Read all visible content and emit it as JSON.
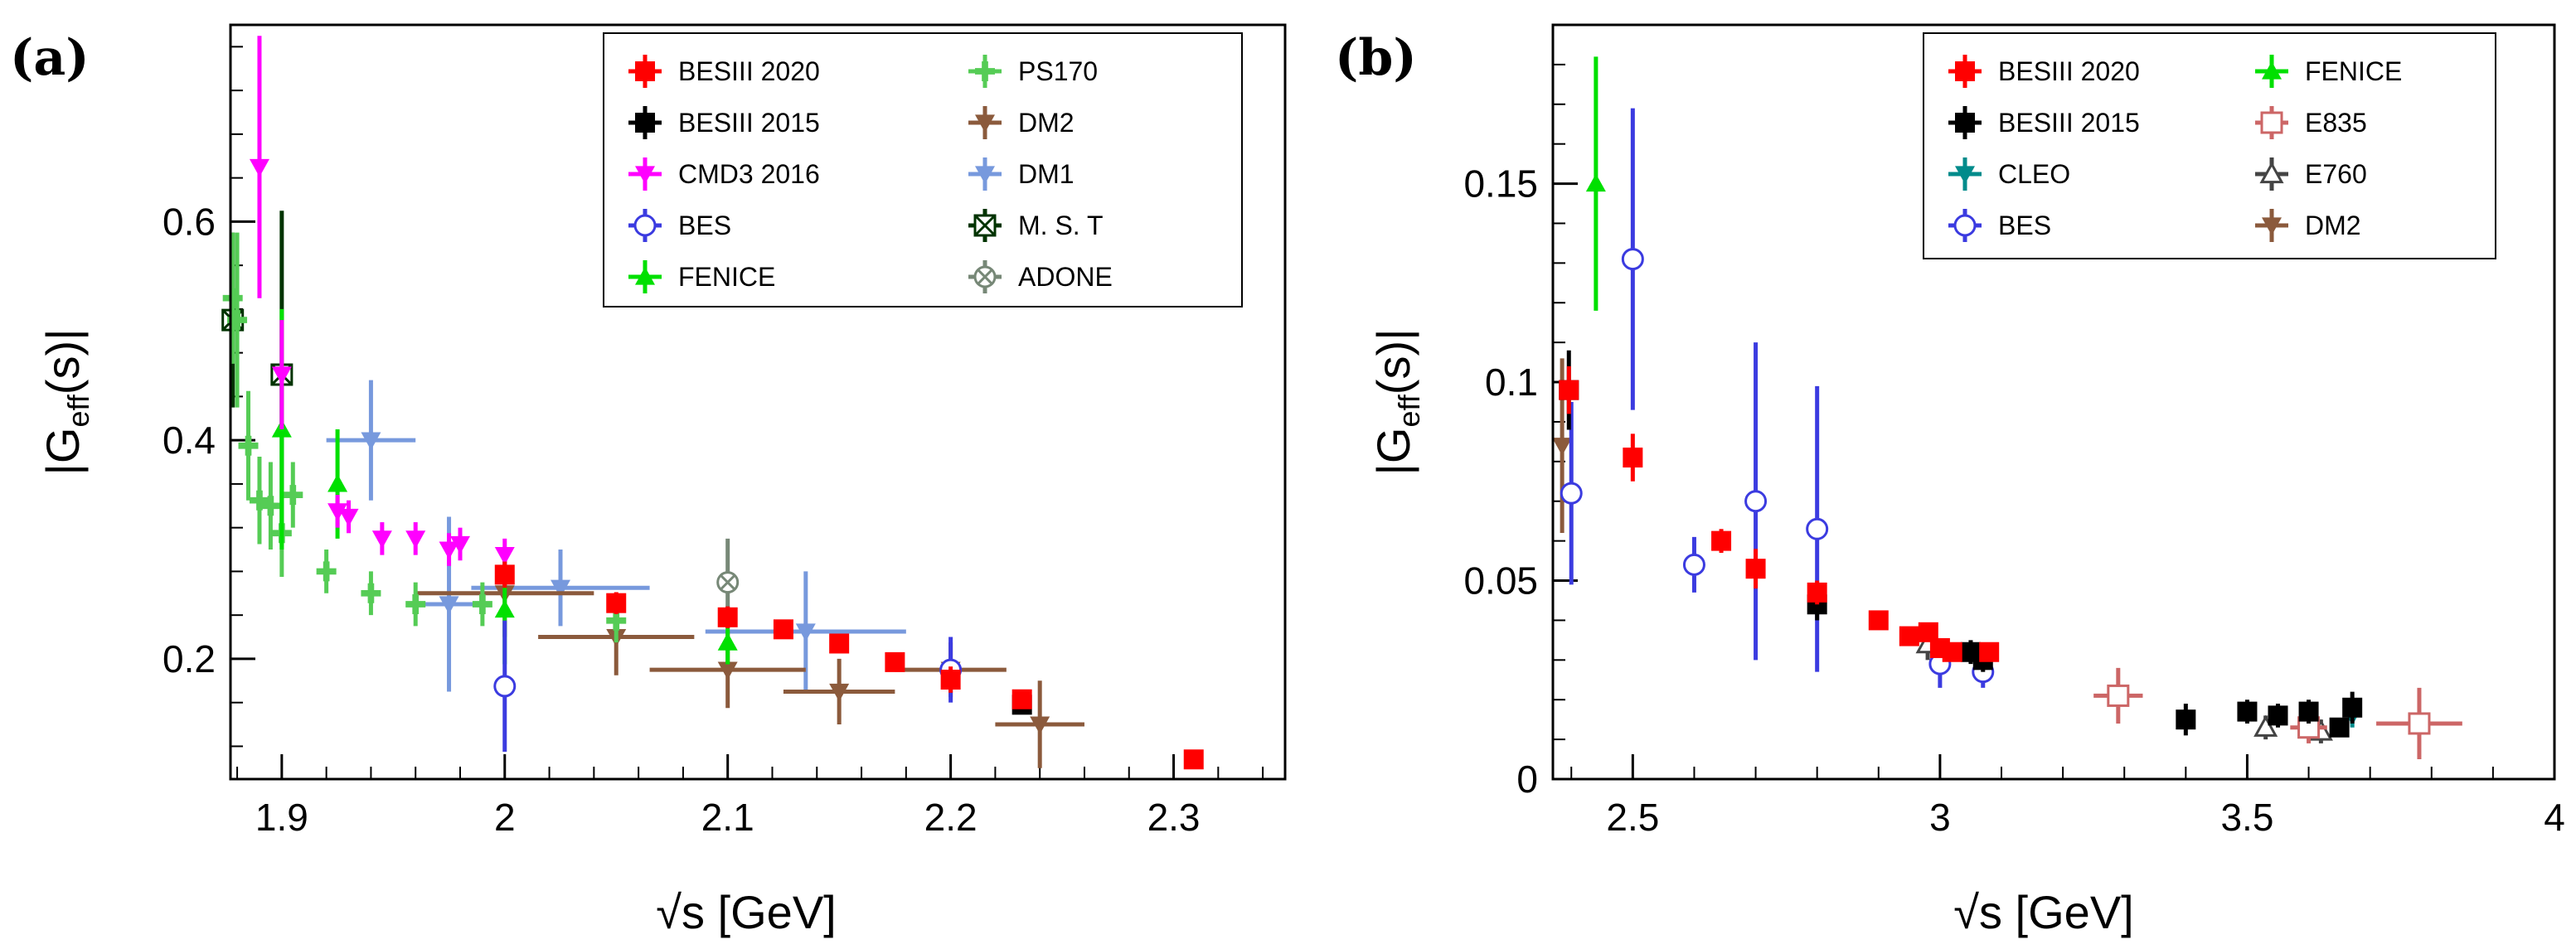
{
  "chart_data": [
    {
      "type": "scatter",
      "panel_label": "(a)",
      "xlabel": "√s [GeV]",
      "ylabel": "|G_eff(s)|",
      "xlim": [
        1.877,
        2.35
      ],
      "ylim": [
        0.09,
        0.78
      ],
      "xticks": [
        {
          "value": 1.9,
          "label": "1.9"
        },
        {
          "value": 2.0,
          "label": "2"
        },
        {
          "value": 2.1,
          "label": "2.1"
        },
        {
          "value": 2.2,
          "label": "2.2"
        },
        {
          "value": 2.3,
          "label": "2.3"
        }
      ],
      "yticks": [
        {
          "value": 0.2,
          "label": "0.2"
        },
        {
          "value": 0.4,
          "label": "0.4"
        },
        {
          "value": 0.6,
          "label": "0.6"
        }
      ],
      "legend_position": "top-right",
      "series": [
        {
          "name": "BESIII 2020",
          "color": "#ff0000",
          "marker": "square",
          "points": [
            [
              2.0,
              0.277,
              0,
              0.012
            ],
            [
              2.05,
              0.251,
              0,
              0.01
            ],
            [
              2.1,
              0.238,
              0,
              0.01
            ],
            [
              2.125,
              0.227,
              0,
              0.008
            ],
            [
              2.15,
              0.214,
              0,
              0.008
            ],
            [
              2.175,
              0.197,
              0,
              0.007
            ],
            [
              2.2,
              0.181,
              0,
              0.012
            ],
            [
              2.232,
              0.163,
              0,
              0.008
            ],
            [
              2.309,
              0.108,
              0,
              0.006
            ]
          ]
        },
        {
          "name": "BESIII 2015",
          "color": "#000000",
          "marker": "square",
          "points": [
            [
              2.232,
              0.158,
              0,
              0.006
            ]
          ]
        },
        {
          "name": "CMD3 2016",
          "color": "#ff00ff",
          "marker": "triangle-down",
          "points": [
            [
              1.89,
              0.65,
              0,
              0.12
            ],
            [
              1.9,
              0.46,
              0,
              0.05
            ],
            [
              1.925,
              0.335,
              0,
              0.015
            ],
            [
              1.93,
              0.33,
              0,
              0.015
            ],
            [
              1.945,
              0.31,
              0,
              0.015
            ],
            [
              1.96,
              0.31,
              0,
              0.015
            ],
            [
              1.975,
              0.3,
              0,
              0.015
            ],
            [
              1.98,
              0.305,
              0,
              0.015
            ],
            [
              2.0,
              0.295,
              0,
              0.015
            ]
          ]
        },
        {
          "name": "BES",
          "color": "#3b3be0",
          "marker": "circle",
          "points": [
            [
              2.0,
              0.175,
              0,
              0.06
            ],
            [
              2.2,
              0.19,
              0,
              0.03
            ]
          ]
        },
        {
          "name": "FENICE",
          "color": "#00e000",
          "marker": "triangle-up",
          "points": [
            [
              1.9,
              0.41,
              0,
              0.11
            ],
            [
              1.925,
              0.36,
              0,
              0.05
            ],
            [
              2.0,
              0.245,
              0,
              0.05
            ],
            [
              2.1,
              0.215,
              0,
              0.02
            ]
          ]
        },
        {
          "name": "PS170",
          "color": "#55cc55",
          "marker": "cross",
          "points": [
            [
              1.878,
              0.53,
              0,
              0.06
            ],
            [
              1.88,
              0.51,
              0,
              0.08
            ],
            [
              1.885,
              0.395,
              0,
              0.05
            ],
            [
              1.89,
              0.345,
              0,
              0.04
            ],
            [
              1.895,
              0.34,
              0,
              0.04
            ],
            [
              1.9,
              0.315,
              0,
              0.04
            ],
            [
              1.905,
              0.35,
              0,
              0.03
            ],
            [
              1.92,
              0.28,
              0,
              0.02
            ],
            [
              1.94,
              0.26,
              0,
              0.02
            ],
            [
              1.96,
              0.25,
              0,
              0.02
            ],
            [
              1.99,
              0.25,
              0,
              0.02
            ],
            [
              2.05,
              0.235,
              0,
              0.02
            ]
          ]
        },
        {
          "name": "DM2",
          "color": "#8b5a3c",
          "marker": "triangle-down",
          "points": [
            [
              2.0,
              0.26,
              0.04,
              0.04
            ],
            [
              2.05,
              0.22,
              0.035,
              0.035
            ],
            [
              2.1,
              0.19,
              0.035,
              0.035
            ],
            [
              2.15,
              0.17,
              0.025,
              0.03
            ],
            [
              2.2,
              0.19,
              0.025,
              0.025
            ],
            [
              2.24,
              0.14,
              0.02,
              0.04
            ]
          ]
        },
        {
          "name": "DM1",
          "color": "#7799dd",
          "marker": "triangle-down",
          "points": [
            [
              1.94,
              0.4,
              0.02,
              0.055
            ],
            [
              1.975,
              0.25,
              0.015,
              0.08
            ],
            [
              2.025,
              0.265,
              0.04,
              0.035
            ],
            [
              2.135,
              0.225,
              0.045,
              0.055
            ]
          ]
        },
        {
          "name": "M. S. T",
          "color": "#003300",
          "marker": "boxcross",
          "points": [
            [
              1.878,
              0.51,
              0,
              0.08
            ],
            [
              1.9,
              0.46,
              0,
              0.15
            ]
          ]
        },
        {
          "name": "ADONE",
          "color": "#778877",
          "marker": "circle-cross",
          "points": [
            [
              2.1,
              0.27,
              0,
              0.04
            ]
          ]
        }
      ]
    },
    {
      "type": "scatter",
      "panel_label": "(b)",
      "xlabel": "√s [GeV]",
      "ylabel": "|G_eff(s)|",
      "xlim": [
        2.37,
        4.0
      ],
      "ylim": [
        0.0,
        0.19
      ],
      "xticks": [
        {
          "value": 2.5,
          "label": "2.5"
        },
        {
          "value": 3.0,
          "label": "3"
        },
        {
          "value": 3.5,
          "label": "3.5"
        },
        {
          "value": 4.0,
          "label": "4"
        }
      ],
      "yticks": [
        {
          "value": 0.0,
          "label": "0"
        },
        {
          "value": 0.05,
          "label": "0.05"
        },
        {
          "value": 0.1,
          "label": "0.1"
        },
        {
          "value": 0.15,
          "label": "0.15"
        }
      ],
      "legend_position": "top-right",
      "series": [
        {
          "name": "BESIII 2020",
          "color": "#ff0000",
          "marker": "square",
          "points": [
            [
              2.396,
              0.098,
              0,
              0.006
            ],
            [
              2.5,
              0.081,
              0,
              0.006
            ],
            [
              2.644,
              0.06,
              0,
              0.003
            ],
            [
              2.7,
              0.053,
              0,
              0.005
            ],
            [
              2.8,
              0.047,
              0,
              0.003
            ],
            [
              2.9,
              0.04,
              0,
              0.002
            ],
            [
              2.95,
              0.036,
              0,
              0.002
            ],
            [
              2.981,
              0.037,
              0,
              0.002
            ],
            [
              3.0,
              0.033,
              0,
              0.002
            ],
            [
              3.02,
              0.032,
              0,
              0.002
            ],
            [
              3.08,
              0.032,
              0,
              0.002
            ]
          ]
        },
        {
          "name": "BESIII 2015",
          "color": "#000000",
          "marker": "square",
          "points": [
            [
              2.396,
              0.098,
              0,
              0.01
            ],
            [
              2.8,
              0.044,
              0,
              0.004
            ],
            [
              3.05,
              0.032,
              0,
              0.003
            ],
            [
              3.07,
              0.03,
              0,
              0.003
            ],
            [
              3.4,
              0.015,
              0,
              0.004
            ],
            [
              3.5,
              0.017,
              0,
              0.003
            ],
            [
              3.55,
              0.016,
              0,
              0.003
            ],
            [
              3.6,
              0.017,
              0,
              0.003
            ],
            [
              3.65,
              0.013,
              0,
              0.002
            ],
            [
              3.671,
              0.018,
              0,
              0.004
            ]
          ]
        },
        {
          "name": "CLEO",
          "color": "#008b8b",
          "marker": "triangle-down",
          "points": [
            [
              3.671,
              0.016,
              0,
              0.003
            ]
          ]
        },
        {
          "name": "BES",
          "color": "#3b3be0",
          "marker": "circle",
          "points": [
            [
              2.4,
              0.072,
              0,
              0.023
            ],
            [
              2.5,
              0.131,
              0,
              0.038
            ],
            [
              2.6,
              0.054,
              0,
              0.007
            ],
            [
              2.7,
              0.07,
              0,
              0.04
            ],
            [
              2.8,
              0.063,
              0,
              0.036
            ],
            [
              3.0,
              0.029,
              0,
              0.006
            ],
            [
              3.07,
              0.027,
              0,
              0.004
            ]
          ]
        },
        {
          "name": "FENICE",
          "color": "#00e000",
          "marker": "triangle-up",
          "points": [
            [
              2.44,
              0.15,
              0,
              0.032
            ]
          ]
        },
        {
          "name": "E835",
          "color": "#cc6666",
          "marker": "open-square",
          "points": [
            [
              3.29,
              0.021,
              0.04,
              0.007
            ],
            [
              3.6,
              0.013,
              0.03,
              0.004
            ],
            [
              3.78,
              0.014,
              0.07,
              0.009
            ]
          ]
        },
        {
          "name": "E760",
          "color": "#444444",
          "marker": "open-triangle",
          "points": [
            [
              2.98,
              0.034,
              0,
              0.004
            ],
            [
              3.53,
              0.013,
              0,
              0.003
            ],
            [
              3.62,
              0.012,
              0,
              0.003
            ]
          ]
        },
        {
          "name": "DM2",
          "color": "#8b5a3c",
          "marker": "triangle-down",
          "points": [
            [
              2.385,
              0.084,
              0,
              0.022
            ]
          ]
        }
      ]
    }
  ]
}
